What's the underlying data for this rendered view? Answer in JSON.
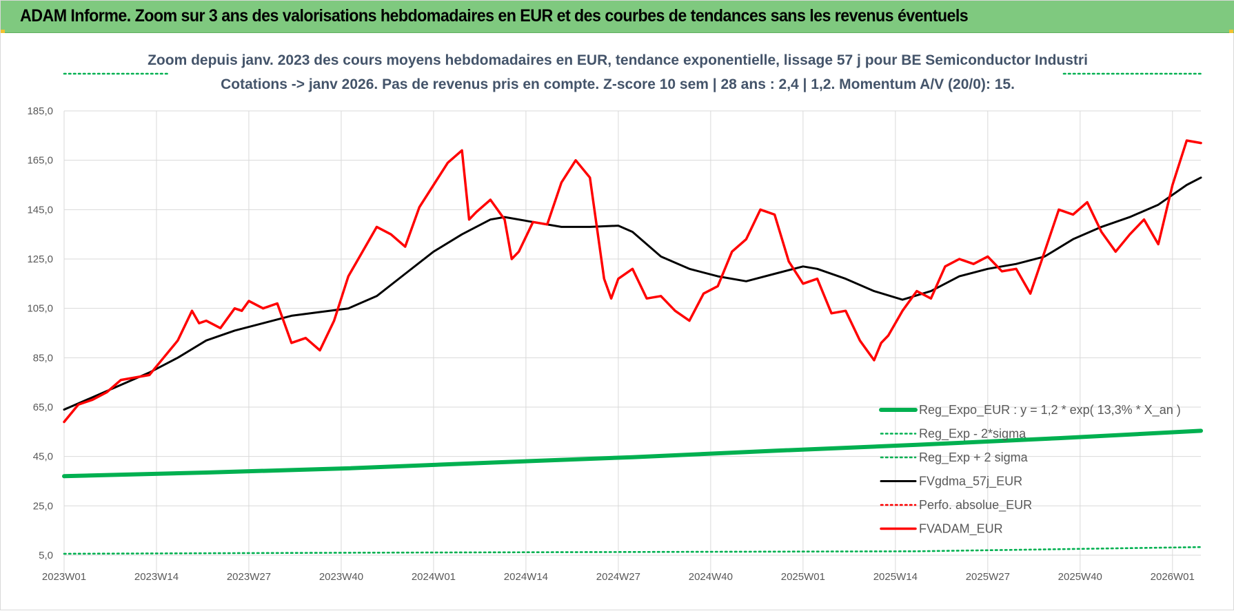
{
  "banner": {
    "title": "ADAM Informe. Zoom sur 3 ans des valorisations hebdomadaires en EUR et des courbes de tendances sans les revenus éventuels"
  },
  "colors": {
    "banner_bg": "#7fc97f",
    "reg_expo": "#00b050",
    "fvgdma": "#000000",
    "perfo": "#ff0000",
    "fvadam": "#ff0000"
  },
  "chart_data": {
    "type": "line",
    "title": [
      "Zoom depuis janv. 2023 des cours moyens hebdomadaires en EUR, tendance exponentielle, lissage 57 j pour BE Semiconductor Industri",
      "Cotations -> janv 2026. Pas de revenus pris en compte. Z-score 10 sem | 28 ans : 2,4 | 1,2. Momentum A/V (20/0): 15."
    ],
    "ylim": [
      5,
      185
    ],
    "yticks": [
      "185,0",
      "165,0",
      "145,0",
      "125,0",
      "105,0",
      "85,0",
      "65,0",
      "45,0",
      "25,0",
      "5,0"
    ],
    "ytick_values": [
      185,
      165,
      145,
      125,
      105,
      85,
      65,
      45,
      25,
      5
    ],
    "xticks": [
      "2023W01",
      "2023W14",
      "2023W27",
      "2023W40",
      "2024W01",
      "2024W14",
      "2024W27",
      "2024W40",
      "2025W01",
      "2025W14",
      "2025W27",
      "2025W40",
      "2026W01"
    ],
    "xtick_weeks": [
      0,
      13,
      26,
      39,
      52,
      65,
      78,
      91,
      104,
      117,
      130,
      143,
      156
    ],
    "x_last_week": 160,
    "grid": true,
    "legend_position": "bottom-right",
    "series": [
      {
        "name": "Reg_Expo_EUR : y = 1,2 * exp( 13,3% *  X_an )",
        "style": "solid-thick",
        "color": "#00b050",
        "x_weeks": [
          0,
          20,
          40,
          60,
          80,
          100,
          120,
          140,
          160
        ],
        "values": [
          37.0,
          38.5,
          40.2,
          42.5,
          44.7,
          47.3,
          49.7,
          52.4,
          55.4
        ]
      },
      {
        "name": "Reg_Exp - 2*sigma",
        "style": "dotted",
        "color": "#00b050",
        "x_weeks": [
          0,
          40,
          80,
          120,
          160
        ],
        "values": [
          5.6,
          6.0,
          6.3,
          6.6,
          8.3
        ]
      },
      {
        "name": "Reg_Exp + 2 sigma",
        "style": "dotted-clipped",
        "color": "#00b050",
        "x_weeks": [
          0,
          160
        ],
        "values": [
          188,
          188
        ]
      },
      {
        "name": "FVgdma_57j_EUR",
        "style": "solid",
        "color": "#000000",
        "x_weeks": [
          0,
          4,
          8,
          12,
          16,
          20,
          24,
          28,
          32,
          36,
          40,
          44,
          48,
          52,
          56,
          60,
          62,
          66,
          70,
          74,
          78,
          80,
          84,
          88,
          92,
          96,
          100,
          104,
          106,
          110,
          114,
          118,
          122,
          126,
          130,
          134,
          138,
          142,
          146,
          150,
          154,
          158,
          160
        ],
        "values": [
          64,
          69,
          74,
          79,
          85,
          92,
          96,
          99,
          102,
          103.5,
          105,
          110,
          119,
          128,
          135,
          141,
          142,
          140,
          138,
          138,
          138.5,
          136,
          126,
          121,
          118,
          116,
          119,
          122,
          121,
          117,
          112,
          108.5,
          112,
          118,
          121,
          123,
          126,
          133,
          138,
          142,
          147,
          155,
          158
        ]
      },
      {
        "name": "Perfo. absolue_EUR",
        "style": "dotted",
        "color": "#ff0000",
        "x_weeks": [],
        "values": []
      },
      {
        "name": "FVADAM_EUR",
        "style": "solid-thick",
        "color": "#ff0000",
        "x_weeks": [
          0,
          2,
          4,
          6,
          8,
          10,
          12,
          14,
          16,
          18,
          19,
          20,
          22,
          24,
          25,
          26,
          28,
          30,
          32,
          34,
          36,
          38,
          40,
          42,
          44,
          46,
          48,
          50,
          52,
          54,
          56,
          57,
          58,
          60,
          62,
          63,
          64,
          66,
          68,
          70,
          72,
          74,
          76,
          77,
          78,
          80,
          82,
          84,
          86,
          88,
          90,
          92,
          94,
          96,
          98,
          100,
          102,
          104,
          106,
          108,
          110,
          112,
          114,
          115,
          116,
          118,
          120,
          122,
          124,
          126,
          128,
          130,
          132,
          134,
          136,
          138,
          140,
          142,
          144,
          146,
          148,
          150,
          152,
          154,
          156,
          158,
          160
        ],
        "values": [
          59,
          66,
          68,
          71,
          76,
          77,
          78,
          85,
          92,
          104,
          99,
          100,
          97,
          105,
          104,
          108,
          105,
          107,
          91,
          93,
          88,
          100,
          118,
          128,
          138,
          135,
          130,
          146,
          155,
          164,
          169,
          141,
          144,
          149,
          141,
          125,
          128,
          140,
          139,
          156,
          165,
          158,
          117,
          109,
          117,
          121,
          109,
          110,
          104,
          100,
          111,
          114,
          128,
          133,
          145,
          143,
          124,
          115,
          117,
          103,
          104,
          92,
          84,
          91,
          94,
          104,
          112,
          109,
          122,
          125,
          123,
          126,
          120,
          121,
          111,
          128,
          145,
          143,
          148,
          136,
          128,
          135,
          141,
          131,
          155,
          173,
          172
        ]
      }
    ]
  }
}
